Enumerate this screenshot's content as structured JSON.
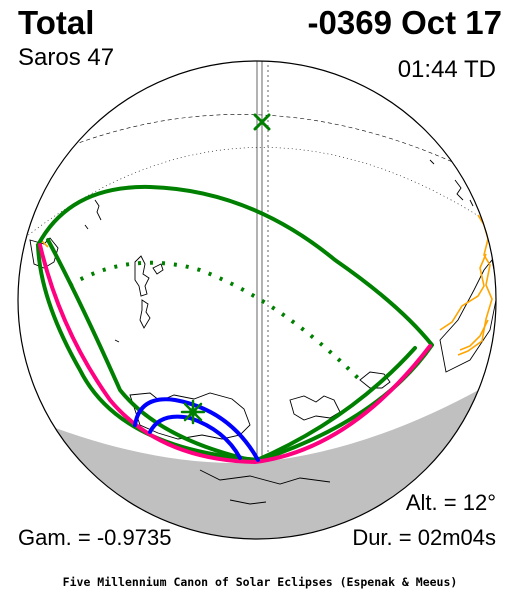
{
  "header": {
    "eclipse_type": "Total",
    "date": "-0369 Oct 17",
    "saros": "Saros  47",
    "time": "01:44 TD"
  },
  "footer": {
    "altitude": "Alt. = 12°",
    "gamma": "Gam. = -0.9735",
    "duration": "Dur. = 02m04s",
    "credit": "Five Millennium Canon of Solar Eclipses (Espenak & Meeus)"
  },
  "map": {
    "night_shade_color": "#c0c0c0",
    "penumbra_color": "#008000",
    "central_path_color": "#ff0080",
    "umbra_limit_color": "#0000ff",
    "coast_highlight_color": "#ffa500",
    "greatest_eclipse_marker": "green-star",
    "subsolar_marker": "green-x"
  }
}
